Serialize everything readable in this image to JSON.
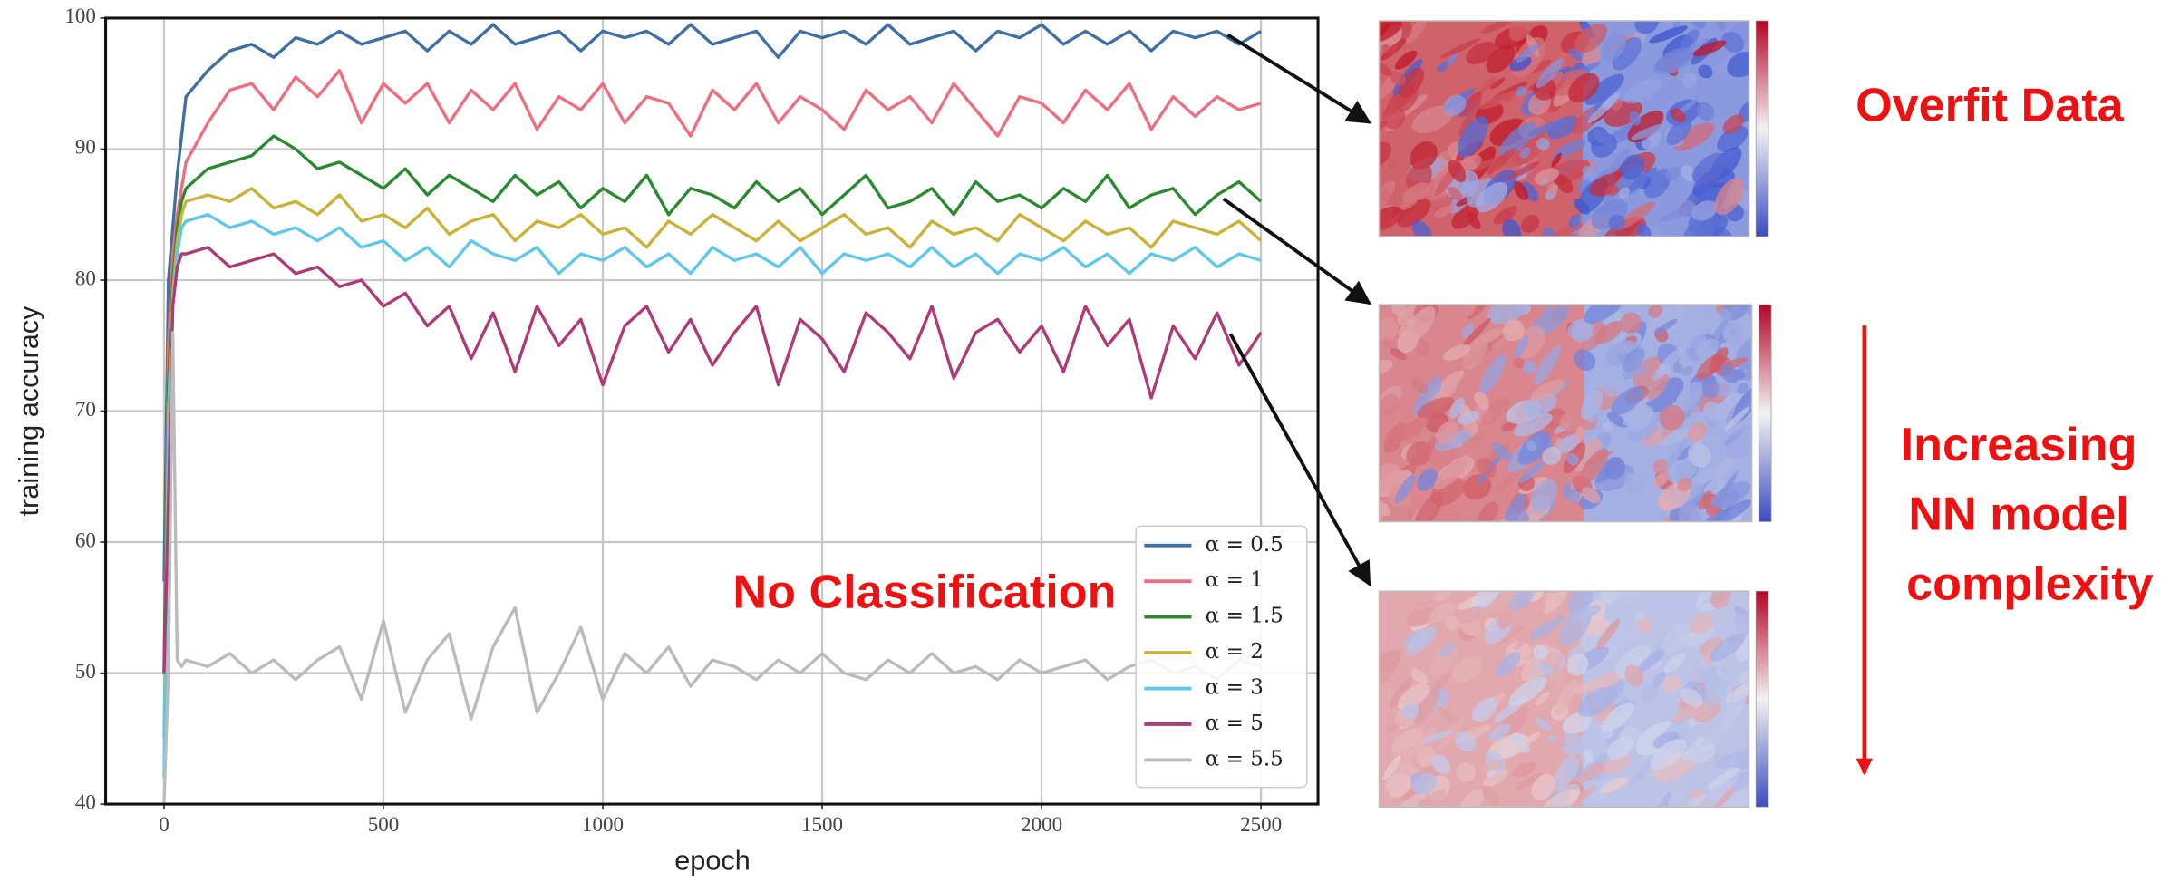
{
  "chart_data": {
    "type": "line",
    "x_label": "epoch",
    "y_label": "training accuracy",
    "xlim": [
      -133,
      2630
    ],
    "ylim": [
      40,
      100
    ],
    "xticks": [
      0,
      500,
      1000,
      1500,
      2000,
      2500
    ],
    "yticks": [
      40,
      50,
      60,
      70,
      80,
      90,
      100
    ],
    "grid": true,
    "legend": "lower right",
    "x": [
      0,
      10,
      20,
      30,
      40,
      50,
      100,
      150,
      200,
      250,
      300,
      350,
      400,
      450,
      500,
      550,
      600,
      650,
      700,
      750,
      800,
      850,
      900,
      950,
      1000,
      1050,
      1100,
      1150,
      1200,
      1250,
      1300,
      1350,
      1400,
      1450,
      1500,
      1550,
      1600,
      1650,
      1700,
      1750,
      1800,
      1850,
      1900,
      1950,
      2000,
      2050,
      2100,
      2150,
      2200,
      2250,
      2300,
      2350,
      2400,
      2450,
      2500
    ],
    "series": [
      {
        "name": "α = 0.5",
        "color": "#3f6fa3",
        "values": [
          57,
          80,
          84,
          88,
          91,
          94,
          96,
          97.5,
          98,
          97,
          98.5,
          98,
          99,
          98,
          98.5,
          99,
          97.5,
          99,
          98,
          99.5,
          98,
          98.5,
          99,
          97.5,
          99,
          98.5,
          99,
          98,
          99.5,
          98,
          98.5,
          99,
          97,
          99,
          98.5,
          99,
          98,
          99.5,
          98,
          98.5,
          99,
          97.5,
          99,
          98.5,
          99.5,
          98,
          99,
          98,
          99,
          97.5,
          99,
          98.5,
          99,
          98,
          99
        ]
      },
      {
        "name": "α = 1",
        "color": "#ef6d7d",
        "values": [
          50,
          75,
          82,
          85,
          87,
          89,
          92,
          94.5,
          95,
          93,
          95.5,
          94,
          96,
          92,
          95,
          93.5,
          95,
          92,
          94.5,
          93,
          95,
          91.5,
          94,
          93,
          95,
          92,
          94,
          93.5,
          91,
          94.5,
          93,
          95,
          92,
          94,
          93,
          91.5,
          94.5,
          93,
          94,
          92,
          95,
          93,
          91,
          94,
          93.5,
          92,
          94.5,
          93,
          95,
          91.5,
          94,
          92.5,
          94,
          93,
          93.5
        ]
      },
      {
        "name": "α = 1.5",
        "color": "#2a8a2f",
        "values": [
          50,
          72,
          80,
          84,
          86,
          87,
          88.5,
          89,
          89.5,
          91,
          90,
          88.5,
          89,
          88,
          87,
          88.5,
          86.5,
          88,
          87,
          86,
          88,
          86.5,
          87.5,
          85.5,
          87,
          86,
          88,
          85,
          87,
          86.5,
          85.5,
          87.5,
          86,
          87,
          85,
          86.5,
          88,
          85.5,
          86,
          87,
          85,
          87.5,
          86,
          86.5,
          85.5,
          87,
          86,
          88,
          85.5,
          86.5,
          87,
          85,
          86.5,
          87.5,
          86
        ]
      },
      {
        "name": "α = 2",
        "color": "#c9b236",
        "values": [
          45,
          70,
          79,
          83,
          85,
          86,
          86.5,
          86,
          87,
          85.5,
          86,
          85,
          86.5,
          84.5,
          85,
          84,
          85.5,
          83.5,
          84.5,
          85,
          83,
          84.5,
          84,
          85,
          83.5,
          84,
          82.5,
          84.5,
          83.5,
          85,
          84,
          83,
          84.5,
          83,
          84,
          85,
          83.5,
          84,
          82.5,
          84.5,
          83.5,
          84,
          83,
          85,
          84,
          83,
          84.5,
          83.5,
          84,
          82.5,
          84.5,
          84,
          83.5,
          84.5,
          83
        ]
      },
      {
        "name": "α = 3",
        "color": "#5ec8ea",
        "values": [
          42,
          68,
          78,
          82,
          84,
          84.5,
          85,
          84,
          84.5,
          83.5,
          84,
          83,
          84,
          82.5,
          83,
          81.5,
          82.5,
          81,
          83,
          82,
          81.5,
          82.5,
          80.5,
          82,
          81.5,
          82.5,
          81,
          82,
          80.5,
          82.5,
          81.5,
          82,
          81,
          82.5,
          80.5,
          82,
          81.5,
          82,
          81,
          82.5,
          81,
          82,
          80.5,
          82,
          81.5,
          82.5,
          81,
          82,
          80.5,
          82,
          81.5,
          82.5,
          81,
          82,
          81.5
        ]
      },
      {
        "name": "α = 5",
        "color": "#b03a78",
        "values": [
          50,
          63,
          78,
          81,
          82,
          82,
          82.5,
          81,
          81.5,
          82,
          80.5,
          81,
          79.5,
          80,
          78,
          79,
          76.5,
          78,
          74,
          77.5,
          73,
          78,
          75,
          77,
          72,
          76.5,
          78,
          74.5,
          77,
          73.5,
          76,
          78,
          72,
          77,
          75.5,
          73,
          77.5,
          76,
          74,
          78,
          72.5,
          76,
          77,
          74.5,
          76.5,
          73,
          78,
          75,
          77,
          71,
          76.5,
          74,
          77.5,
          73.5,
          76
        ]
      },
      {
        "name": "α = 5.5",
        "color": "#bbbbbb",
        "values": [
          40,
          50,
          76,
          51,
          50.5,
          51,
          50.5,
          51.5,
          50,
          51,
          49.5,
          51,
          52,
          48,
          54,
          47,
          51,
          53,
          46.5,
          52,
          55,
          47,
          50,
          53.5,
          48,
          51.5,
          50,
          52,
          49,
          51,
          50.5,
          49.5,
          51,
          50,
          51.5,
          50,
          49.5,
          51,
          50,
          51.5,
          50,
          50.5,
          49.5,
          51,
          50,
          50.5,
          51,
          49.5,
          50.5,
          51,
          50,
          50.5,
          49.5,
          51,
          50.5
        ]
      }
    ],
    "annotations": {
      "no_classification": "No Classification",
      "overfit": "Overfit Data",
      "complexity": [
        "Increasing",
        "NN model",
        "complexity"
      ]
    }
  }
}
